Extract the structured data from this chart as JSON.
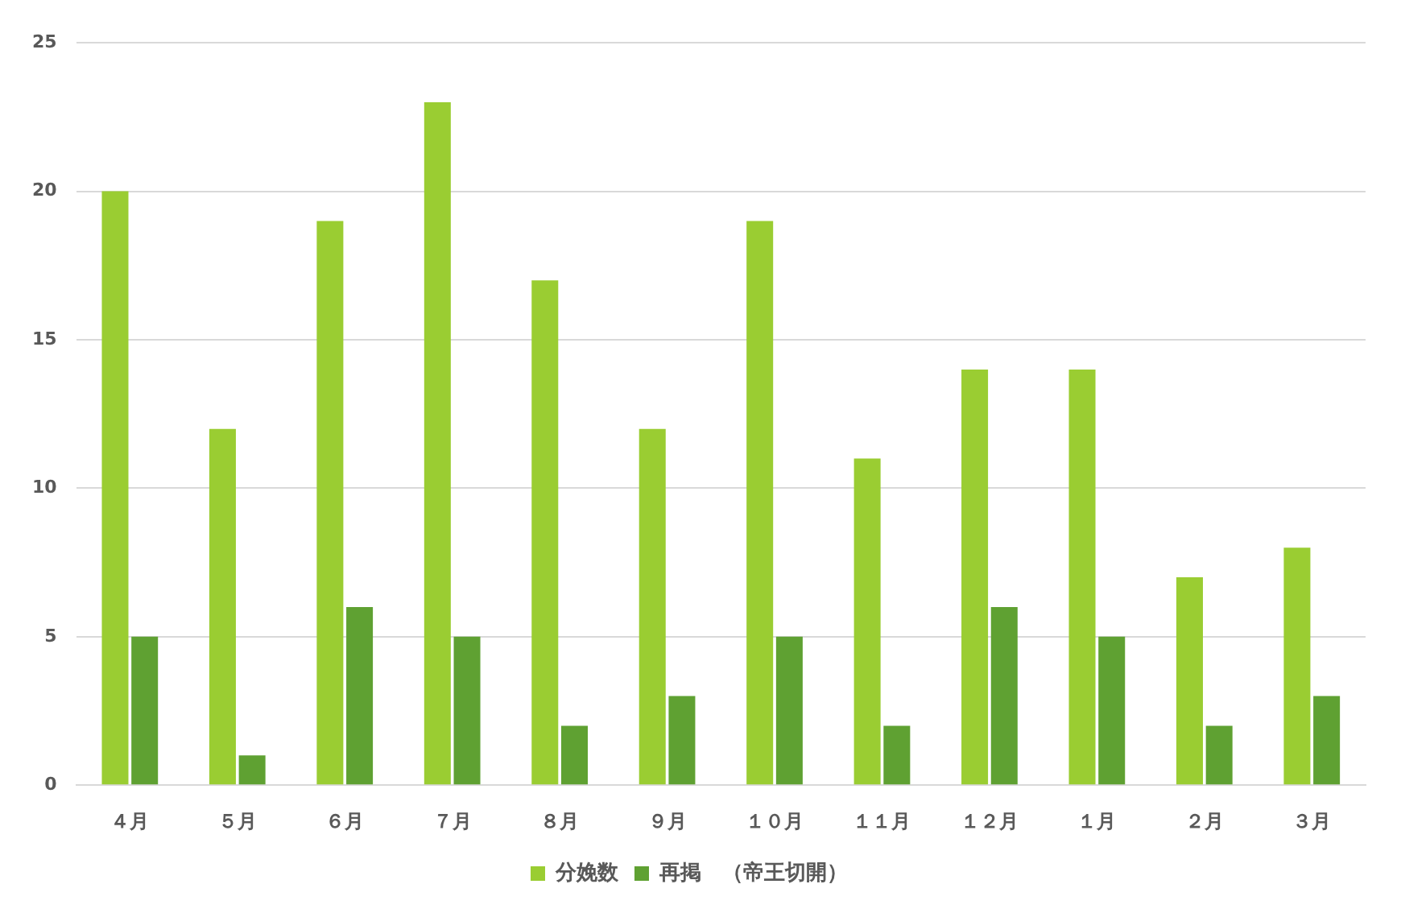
{
  "chart_data": {
    "type": "bar",
    "categories": [
      "４月",
      "５月",
      "６月",
      "７月",
      "８月",
      "９月",
      "１０月",
      "１１月",
      "１２月",
      "１月",
      "２月",
      "３月"
    ],
    "series": [
      {
        "name": "分娩数",
        "color": "#9acd32",
        "values": [
          20,
          12,
          19,
          23,
          17,
          12,
          19,
          11,
          14,
          14,
          7,
          8
        ]
      },
      {
        "name": "再掲　（帝王切開）",
        "color": "#5fa132",
        "values": [
          5,
          1,
          6,
          5,
          2,
          3,
          5,
          2,
          6,
          5,
          2,
          3
        ]
      }
    ],
    "ylim": [
      0,
      25
    ],
    "yticks": [
      0,
      5,
      10,
      15,
      20,
      25
    ],
    "grid": "y",
    "legend": "bottom"
  }
}
